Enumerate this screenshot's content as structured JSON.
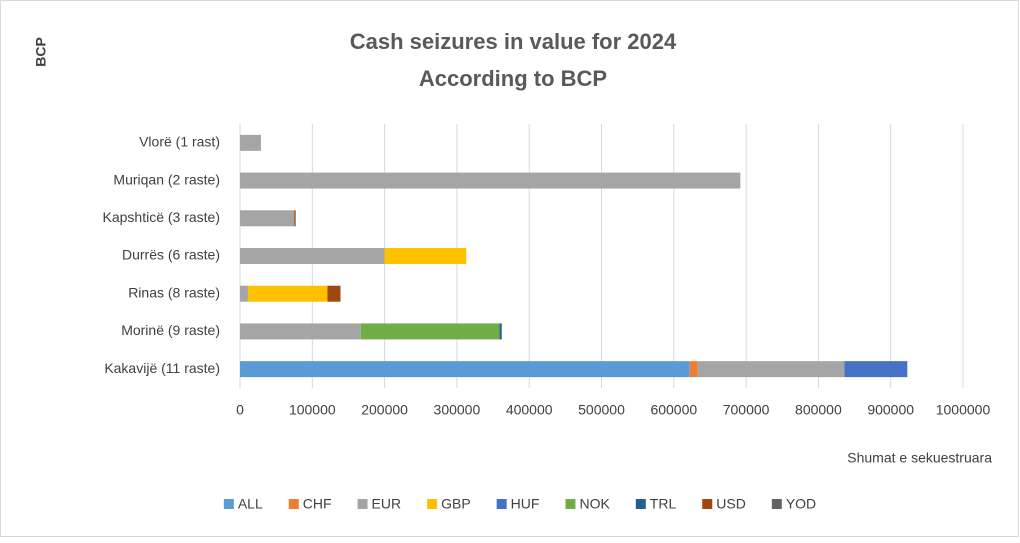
{
  "chart_data": {
    "type": "stacked-barh",
    "title": [
      "Cash seizures in value for 2024",
      "According to BCP"
    ],
    "ylabel": "BCP",
    "xlabel": "Shumat e sekuestruara",
    "categories": [
      "Vlorë (1 rast)",
      "Muriqan (2 raste)",
      "Kapshticë (3 raste)",
      "Durrës (6 raste)",
      "Rinas (8 raste)",
      "Morinë (9 raste)",
      "Kakavijë (11 raste)"
    ],
    "series": [
      {
        "name": "ALL",
        "color": "#5b9bd5",
        "values": [
          0,
          0,
          0,
          0,
          0,
          0,
          622000
        ]
      },
      {
        "name": "CHF",
        "color": "#ed7d31",
        "values": [
          0,
          0,
          0,
          0,
          0,
          0,
          11000
        ]
      },
      {
        "name": "EUR",
        "color": "#a5a5a5",
        "values": [
          29000,
          692000,
          75000,
          200000,
          11000,
          167000,
          203000
        ]
      },
      {
        "name": "GBP",
        "color": "#ffc000",
        "values": [
          0,
          0,
          0,
          113000,
          110000,
          0,
          0
        ]
      },
      {
        "name": "HUF",
        "color": "#4472c4",
        "values": [
          0,
          0,
          0,
          0,
          0,
          0,
          87000
        ]
      },
      {
        "name": "NOK",
        "color": "#70ad47",
        "values": [
          0,
          0,
          0,
          0,
          0,
          192000,
          0
        ]
      },
      {
        "name": "TRL",
        "color": "#255e91",
        "values": [
          0,
          0,
          0,
          0,
          0,
          3000,
          0
        ]
      },
      {
        "name": "USD",
        "color": "#9e480e",
        "values": [
          0,
          0,
          2000,
          0,
          18000,
          0,
          0
        ]
      },
      {
        "name": "YOD",
        "color": "#636363",
        "values": [
          0,
          0,
          0,
          0,
          0,
          0,
          0
        ]
      }
    ],
    "xlim": [
      0,
      1000000
    ],
    "xticks": [
      0,
      100000,
      200000,
      300000,
      400000,
      500000,
      600000,
      700000,
      800000,
      900000,
      1000000
    ],
    "grid": true,
    "legend": "bottom"
  }
}
